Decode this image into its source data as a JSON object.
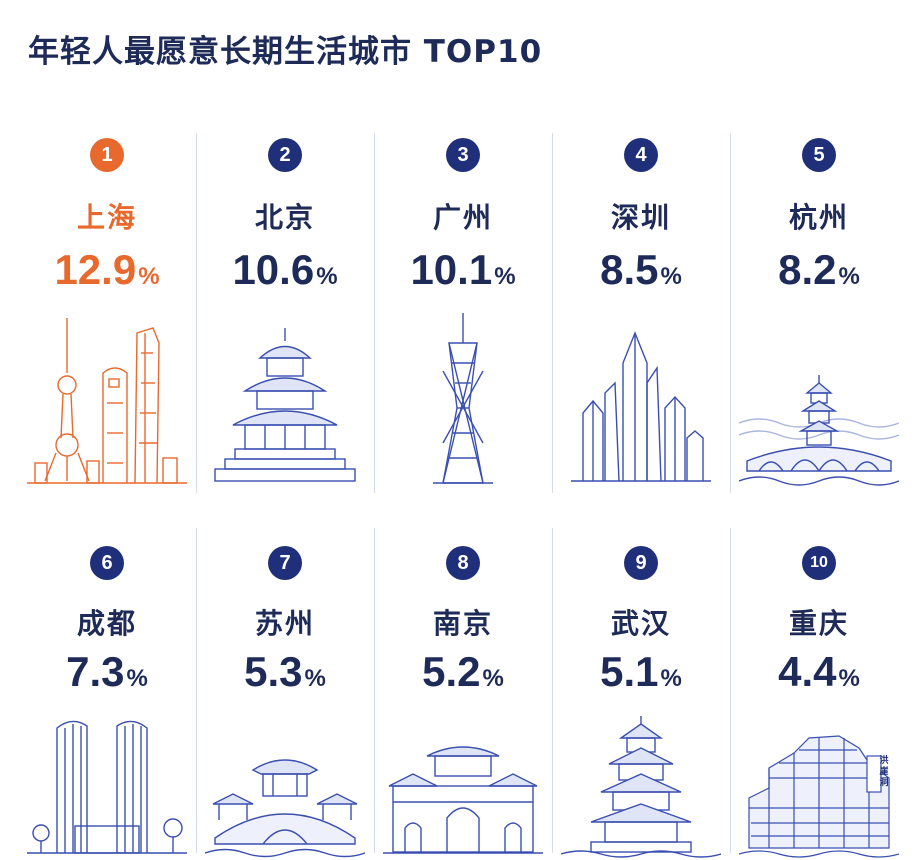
{
  "title": "年轻人最愿意长期生活城市 TOP10",
  "colors": {
    "accent": "#e8692e",
    "navy": "#1f2f7a",
    "line": "#3a4fb0"
  },
  "cities": [
    {
      "rank": "1",
      "name": "上海",
      "value": "12.9",
      "unit": "%",
      "icon": "shanghai-skyline-icon"
    },
    {
      "rank": "2",
      "name": "北京",
      "value": "10.6",
      "unit": "%",
      "icon": "temple-of-heaven-icon"
    },
    {
      "rank": "3",
      "name": "广州",
      "value": "10.1",
      "unit": "%",
      "icon": "canton-tower-icon"
    },
    {
      "rank": "4",
      "name": "深圳",
      "value": "8.5",
      "unit": "%",
      "icon": "skyscrapers-icon"
    },
    {
      "rank": "5",
      "name": "杭州",
      "value": "8.2",
      "unit": "%",
      "icon": "pagoda-bridge-icon"
    },
    {
      "rank": "6",
      "name": "成都",
      "value": "7.3",
      "unit": "%",
      "icon": "twin-towers-icon"
    },
    {
      "rank": "7",
      "name": "苏州",
      "value": "5.3",
      "unit": "%",
      "icon": "garden-bridge-icon"
    },
    {
      "rank": "8",
      "name": "南京",
      "value": "5.2",
      "unit": "%",
      "icon": "city-gate-icon"
    },
    {
      "rank": "9",
      "name": "武汉",
      "value": "5.1",
      "unit": "%",
      "icon": "yellow-crane-tower-icon"
    },
    {
      "rank": "10",
      "name": "重庆",
      "value": "4.4",
      "unit": "%",
      "icon": "hongyadong-icon"
    }
  ],
  "hongyadong_sign": "洪崖洞"
}
